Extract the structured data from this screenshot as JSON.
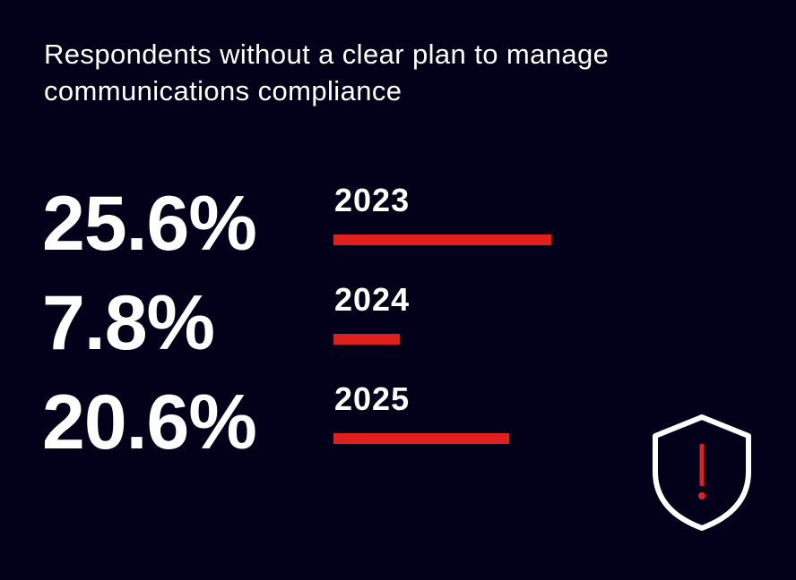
{
  "chart_data": {
    "type": "bar",
    "title": "Respondents without a clear plan to manage communications compliance",
    "categories": [
      "2023",
      "2024",
      "2025"
    ],
    "values": [
      25.6,
      7.8,
      20.6
    ],
    "value_labels": [
      "25.6%",
      "7.8%",
      "20.6%"
    ],
    "unit": "%",
    "orientation": "horizontal",
    "xlim": [
      0,
      25.6
    ],
    "grid": false,
    "legend": "none"
  },
  "colors": {
    "background": "#03001a",
    "bar": "#e0201f",
    "text": "#ffffff",
    "icon_outline": "#ffffff",
    "icon_accent": "#e0201f"
  },
  "icons": {
    "shield": "shield-alert-icon"
  }
}
